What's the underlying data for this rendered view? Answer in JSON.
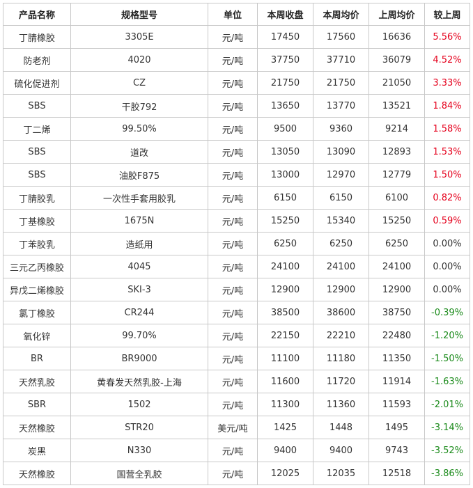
{
  "headers": [
    "产品名称",
    "规格型号",
    "单位",
    "本周收盘",
    "本周均价",
    "上周均价",
    "较上周"
  ],
  "colors": {
    "up": "#e5001c",
    "down": "#1a8a1a",
    "flat": "#333333",
    "border": "#c8c8c8"
  },
  "rows": [
    {
      "name": "丁腈橡胶",
      "spec": "3305E",
      "unit": "元/吨",
      "close": "17450",
      "avg": "17560",
      "prev": "16636",
      "chg": "5.56%",
      "dir": "up"
    },
    {
      "name": "防老剂",
      "spec": "4020",
      "unit": "元/吨",
      "close": "37750",
      "avg": "37710",
      "prev": "36079",
      "chg": "4.52%",
      "dir": "up"
    },
    {
      "name": "硫化促进剂",
      "spec": "CZ",
      "unit": "元/吨",
      "close": "21750",
      "avg": "21750",
      "prev": "21050",
      "chg": "3.33%",
      "dir": "up"
    },
    {
      "name": "SBS",
      "spec": "干胶792",
      "unit": "元/吨",
      "close": "13650",
      "avg": "13770",
      "prev": "13521",
      "chg": "1.84%",
      "dir": "up"
    },
    {
      "name": "丁二烯",
      "spec": "99.50%",
      "unit": "元/吨",
      "close": "9500",
      "avg": "9360",
      "prev": "9214",
      "chg": "1.58%",
      "dir": "up"
    },
    {
      "name": "SBS",
      "spec": "道改",
      "unit": "元/吨",
      "close": "13050",
      "avg": "13090",
      "prev": "12893",
      "chg": "1.53%",
      "dir": "up"
    },
    {
      "name": "SBS",
      "spec": "油胶F875",
      "unit": "元/吨",
      "close": "13000",
      "avg": "12970",
      "prev": "12779",
      "chg": "1.50%",
      "dir": "up"
    },
    {
      "name": "丁腈胶乳",
      "spec": "一次性手套用胶乳",
      "unit": "元/吨",
      "close": "6150",
      "avg": "6150",
      "prev": "6100",
      "chg": "0.82%",
      "dir": "up"
    },
    {
      "name": "丁基橡胶",
      "spec": "1675N",
      "unit": "元/吨",
      "close": "15250",
      "avg": "15340",
      "prev": "15250",
      "chg": "0.59%",
      "dir": "up"
    },
    {
      "name": "丁苯胶乳",
      "spec": "造纸用",
      "unit": "元/吨",
      "close": "6250",
      "avg": "6250",
      "prev": "6250",
      "chg": "0.00%",
      "dir": "flat"
    },
    {
      "name": "三元乙丙橡胶",
      "spec": "4045",
      "unit": "元/吨",
      "close": "24100",
      "avg": "24100",
      "prev": "24100",
      "chg": "0.00%",
      "dir": "flat"
    },
    {
      "name": "异戊二烯橡胶",
      "spec": "SKI-3",
      "unit": "元/吨",
      "close": "12900",
      "avg": "12900",
      "prev": "12900",
      "chg": "0.00%",
      "dir": "flat"
    },
    {
      "name": "氯丁橡胶",
      "spec": "CR244",
      "unit": "元/吨",
      "close": "38500",
      "avg": "38600",
      "prev": "38750",
      "chg": "-0.39%",
      "dir": "down"
    },
    {
      "name": "氧化锌",
      "spec": "99.70%",
      "unit": "元/吨",
      "close": "22150",
      "avg": "22210",
      "prev": "22480",
      "chg": "-1.20%",
      "dir": "down"
    },
    {
      "name": "BR",
      "spec": "BR9000",
      "unit": "元/吨",
      "close": "11100",
      "avg": "11180",
      "prev": "11350",
      "chg": "-1.50%",
      "dir": "down"
    },
    {
      "name": "天然乳胶",
      "spec": "黄春发天然乳胶-上海",
      "unit": "元/吨",
      "close": "11600",
      "avg": "11720",
      "prev": "11914",
      "chg": "-1.63%",
      "dir": "down"
    },
    {
      "name": "SBR",
      "spec": "1502",
      "unit": "元/吨",
      "close": "11300",
      "avg": "11360",
      "prev": "11593",
      "chg": "-2.01%",
      "dir": "down"
    },
    {
      "name": "天然橡胶",
      "spec": "STR20",
      "unit": "美元/吨",
      "close": "1425",
      "avg": "1448",
      "prev": "1495",
      "chg": "-3.14%",
      "dir": "down"
    },
    {
      "name": "炭黑",
      "spec": "N330",
      "unit": "元/吨",
      "close": "9400",
      "avg": "9400",
      "prev": "9743",
      "chg": "-3.52%",
      "dir": "down"
    },
    {
      "name": "天然橡胶",
      "spec": "国营全乳胶",
      "unit": "元/吨",
      "close": "12025",
      "avg": "12035",
      "prev": "12518",
      "chg": "-3.86%",
      "dir": "down"
    }
  ]
}
